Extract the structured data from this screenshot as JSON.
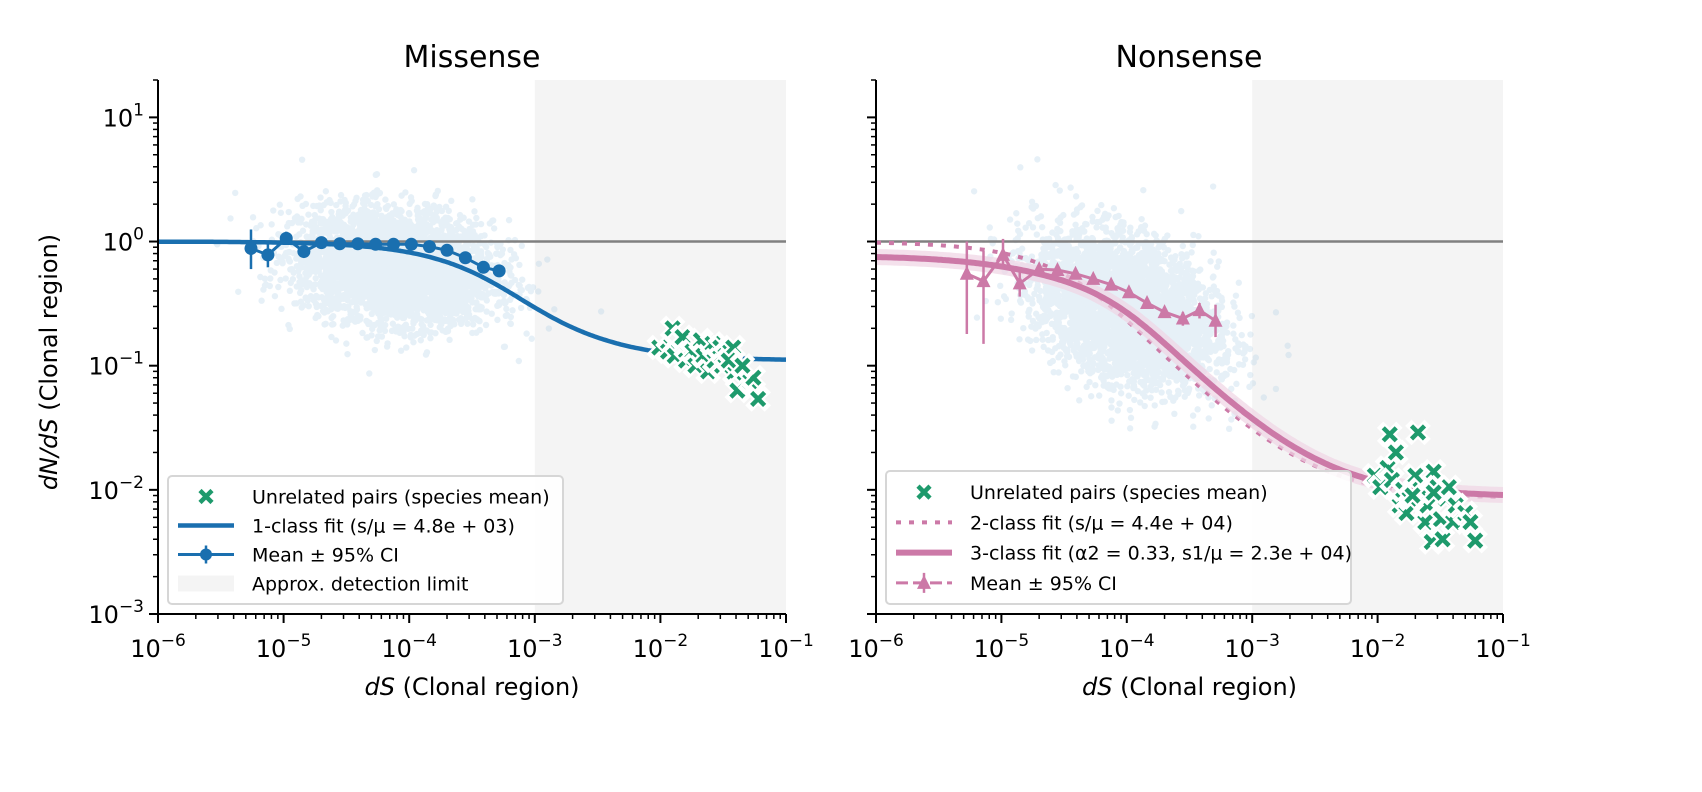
{
  "chart_data": [
    {
      "type": "scatter",
      "title": "Missense",
      "xlabel": "dS (Clonal region)",
      "ylabel": "dN/dS (Clonal region)",
      "xscale": "log",
      "yscale": "log",
      "xlim": [
        1e-06,
        0.1
      ],
      "ylim": [
        0.001,
        20
      ],
      "xticks": [
        1e-06,
        1e-05,
        0.0001,
        0.001,
        0.01,
        0.1
      ],
      "xtick_labels": [
        {
          "b": "10",
          "e": "−6"
        },
        {
          "b": "10",
          "e": "−5"
        },
        {
          "b": "10",
          "e": "−4"
        },
        {
          "b": "10",
          "e": "−3"
        },
        {
          "b": "10",
          "e": "−2"
        },
        {
          "b": "10",
          "e": "−1"
        }
      ],
      "yticks": [
        0.001,
        0.01,
        0.1,
        1,
        10
      ],
      "ytick_labels": [
        {
          "b": "10",
          "e": "−3"
        },
        {
          "b": "10",
          "e": "−2"
        },
        {
          "b": "10",
          "e": "−1"
        },
        {
          "b": "10",
          "e": "0"
        },
        {
          "b": "10",
          "e": "1"
        }
      ],
      "reference_line_y": 1,
      "detection_limit_xmin": 0.001,
      "grid": false,
      "legend_position": "lower-left",
      "colors": {
        "fit": "#1a6faf",
        "cloud": "#a9cbe3",
        "pairs": "#1e9a6c",
        "ref": "#808080",
        "shade": "#f4f4f4"
      },
      "cloud": {
        "center_log_dS": -4.1,
        "sd_log_dS": 0.38,
        "center_log_ratio": -0.2,
        "sd_log_ratio": 0.22,
        "slope": -0.1,
        "n_points": 4000
      },
      "series": [
        {
          "name": "1-class fit",
          "kind": "line",
          "model": {
            "type": "one_class",
            "s_over_mu": 4800,
            "floor": 0.11
          }
        },
        {
          "name": "Mean ± 95% CI",
          "kind": "errorbar",
          "x": [
            5.5e-06,
            7.5e-06,
            1.05e-05,
            1.45e-05,
            2e-05,
            2.8e-05,
            3.9e-05,
            5.4e-05,
            7.5e-05,
            0.000104,
            0.000145,
            0.0002,
            0.00028,
            0.00039,
            0.00052
          ],
          "y": [
            0.88,
            0.78,
            1.06,
            0.83,
            0.98,
            0.96,
            0.96,
            0.95,
            0.95,
            0.95,
            0.91,
            0.85,
            0.74,
            0.62,
            0.58
          ],
          "ylo": [
            0.6,
            0.62,
            0.94,
            0.77,
            0.95,
            0.94,
            0.94,
            0.93,
            0.93,
            0.93,
            0.89,
            0.82,
            0.71,
            0.58,
            0.53
          ],
          "yhi": [
            1.25,
            0.98,
            1.2,
            0.9,
            1.01,
            0.98,
            0.98,
            0.97,
            0.97,
            0.97,
            0.93,
            0.88,
            0.77,
            0.66,
            0.63
          ]
        },
        {
          "name": "Unrelated pairs (species mean)",
          "kind": "scatter",
          "x": [
            0.0098,
            0.0115,
            0.0125,
            0.013,
            0.015,
            0.016,
            0.018,
            0.019,
            0.021,
            0.022,
            0.024,
            0.026,
            0.027,
            0.03,
            0.031,
            0.033,
            0.036,
            0.038,
            0.039,
            0.041,
            0.052,
            0.055,
            0.06,
            0.035,
            0.045
          ],
          "y": [
            0.14,
            0.13,
            0.2,
            0.12,
            0.17,
            0.11,
            0.13,
            0.1,
            0.16,
            0.12,
            0.09,
            0.15,
            0.11,
            0.14,
            0.1,
            0.12,
            0.13,
            0.14,
            0.088,
            0.063,
            0.075,
            0.08,
            0.054,
            0.11,
            0.1
          ]
        }
      ],
      "legend": [
        {
          "marker": "x",
          "label": "Unrelated pairs (species mean)"
        },
        {
          "marker": "line",
          "label": "1-class fit (s/μ = 4.8e + 03)"
        },
        {
          "marker": "errorbar-circle",
          "label": "Mean ± 95% CI"
        },
        {
          "marker": "patch",
          "label": "Approx. detection limit"
        }
      ]
    },
    {
      "type": "scatter",
      "title": "Nonsense",
      "xlabel": "dS (Clonal region)",
      "ylabel": "",
      "xscale": "log",
      "yscale": "log",
      "xlim": [
        1e-06,
        0.1
      ],
      "ylim": [
        0.001,
        20
      ],
      "xticks": [
        1e-06,
        1e-05,
        0.0001,
        0.001,
        0.01,
        0.1
      ],
      "xtick_labels": [
        {
          "b": "10",
          "e": "−6"
        },
        {
          "b": "10",
          "e": "−5"
        },
        {
          "b": "10",
          "e": "−4"
        },
        {
          "b": "10",
          "e": "−3"
        },
        {
          "b": "10",
          "e": "−2"
        },
        {
          "b": "10",
          "e": "−1"
        }
      ],
      "reference_line_y": 1,
      "detection_limit_xmin": 0.001,
      "grid": false,
      "legend_position": "lower-left",
      "colors": {
        "fit": "#cc79a7",
        "fit_band": "#f0d4e4",
        "cloud": "#a9cbe3",
        "pairs": "#1e9a6c",
        "ref": "#808080",
        "shade": "#f4f4f4"
      },
      "cloud": {
        "center_log_dS": -4.0,
        "sd_log_dS": 0.36,
        "center_log_ratio": -0.55,
        "sd_log_ratio": 0.28,
        "slope": -0.3,
        "n_points": 4000
      },
      "series": [
        {
          "name": "2-class fit",
          "kind": "line-dotted",
          "model": {
            "type": "one_class",
            "s_over_mu": 44000,
            "floor": 0.0085
          }
        },
        {
          "name": "3-class fit",
          "kind": "line",
          "model": {
            "type": "two_class",
            "alpha2": 0.33,
            "s1_over_mu": 23000,
            "floor": 0.0088
          }
        },
        {
          "name": "Mean ± 95% CI",
          "kind": "errorbar-triangle",
          "x": [
            5.3e-06,
            7.2e-06,
            1.03e-05,
            1.4e-05,
            2e-05,
            2.8e-05,
            3.9e-05,
            5.4e-05,
            7.5e-05,
            0.000104,
            0.000145,
            0.0002,
            0.00028,
            0.00038,
            0.00051
          ],
          "y": [
            0.55,
            0.48,
            0.78,
            0.46,
            0.6,
            0.59,
            0.55,
            0.5,
            0.45,
            0.39,
            0.32,
            0.27,
            0.24,
            0.28,
            0.23
          ],
          "ylo": [
            0.18,
            0.15,
            0.62,
            0.36,
            0.55,
            0.56,
            0.52,
            0.48,
            0.43,
            0.37,
            0.3,
            0.25,
            0.21,
            0.24,
            0.17
          ],
          "yhi": [
            1.0,
            0.84,
            1.05,
            0.6,
            0.65,
            0.62,
            0.58,
            0.52,
            0.47,
            0.41,
            0.34,
            0.29,
            0.27,
            0.32,
            0.31
          ]
        },
        {
          "name": "Unrelated pairs (species mean)",
          "kind": "scatter",
          "x": [
            0.0095,
            0.0105,
            0.012,
            0.0125,
            0.013,
            0.014,
            0.015,
            0.016,
            0.017,
            0.018,
            0.02,
            0.021,
            0.022,
            0.024,
            0.025,
            0.027,
            0.028,
            0.03,
            0.032,
            0.033,
            0.035,
            0.037,
            0.04,
            0.042,
            0.05,
            0.055,
            0.06,
            0.028,
            0.019
          ],
          "y": [
            0.013,
            0.0105,
            0.015,
            0.028,
            0.012,
            0.02,
            0.0075,
            0.01,
            0.0065,
            0.0085,
            0.013,
            0.029,
            0.01,
            0.0055,
            0.0075,
            0.0038,
            0.014,
            0.0105,
            0.0058,
            0.004,
            0.0085,
            0.0105,
            0.0055,
            0.0075,
            0.0065,
            0.0055,
            0.0039,
            0.0095,
            0.009
          ]
        }
      ],
      "legend": [
        {
          "marker": "x",
          "label": "Unrelated pairs (species mean)"
        },
        {
          "marker": "dotted",
          "label": "2-class fit (s/μ = 4.4e + 04)"
        },
        {
          "marker": "line-thick",
          "label": "3-class fit (α2 = 0.33, s1/μ = 2.3e + 04)"
        },
        {
          "marker": "errorbar-triangle",
          "label": "Mean ± 95% CI"
        }
      ]
    }
  ]
}
